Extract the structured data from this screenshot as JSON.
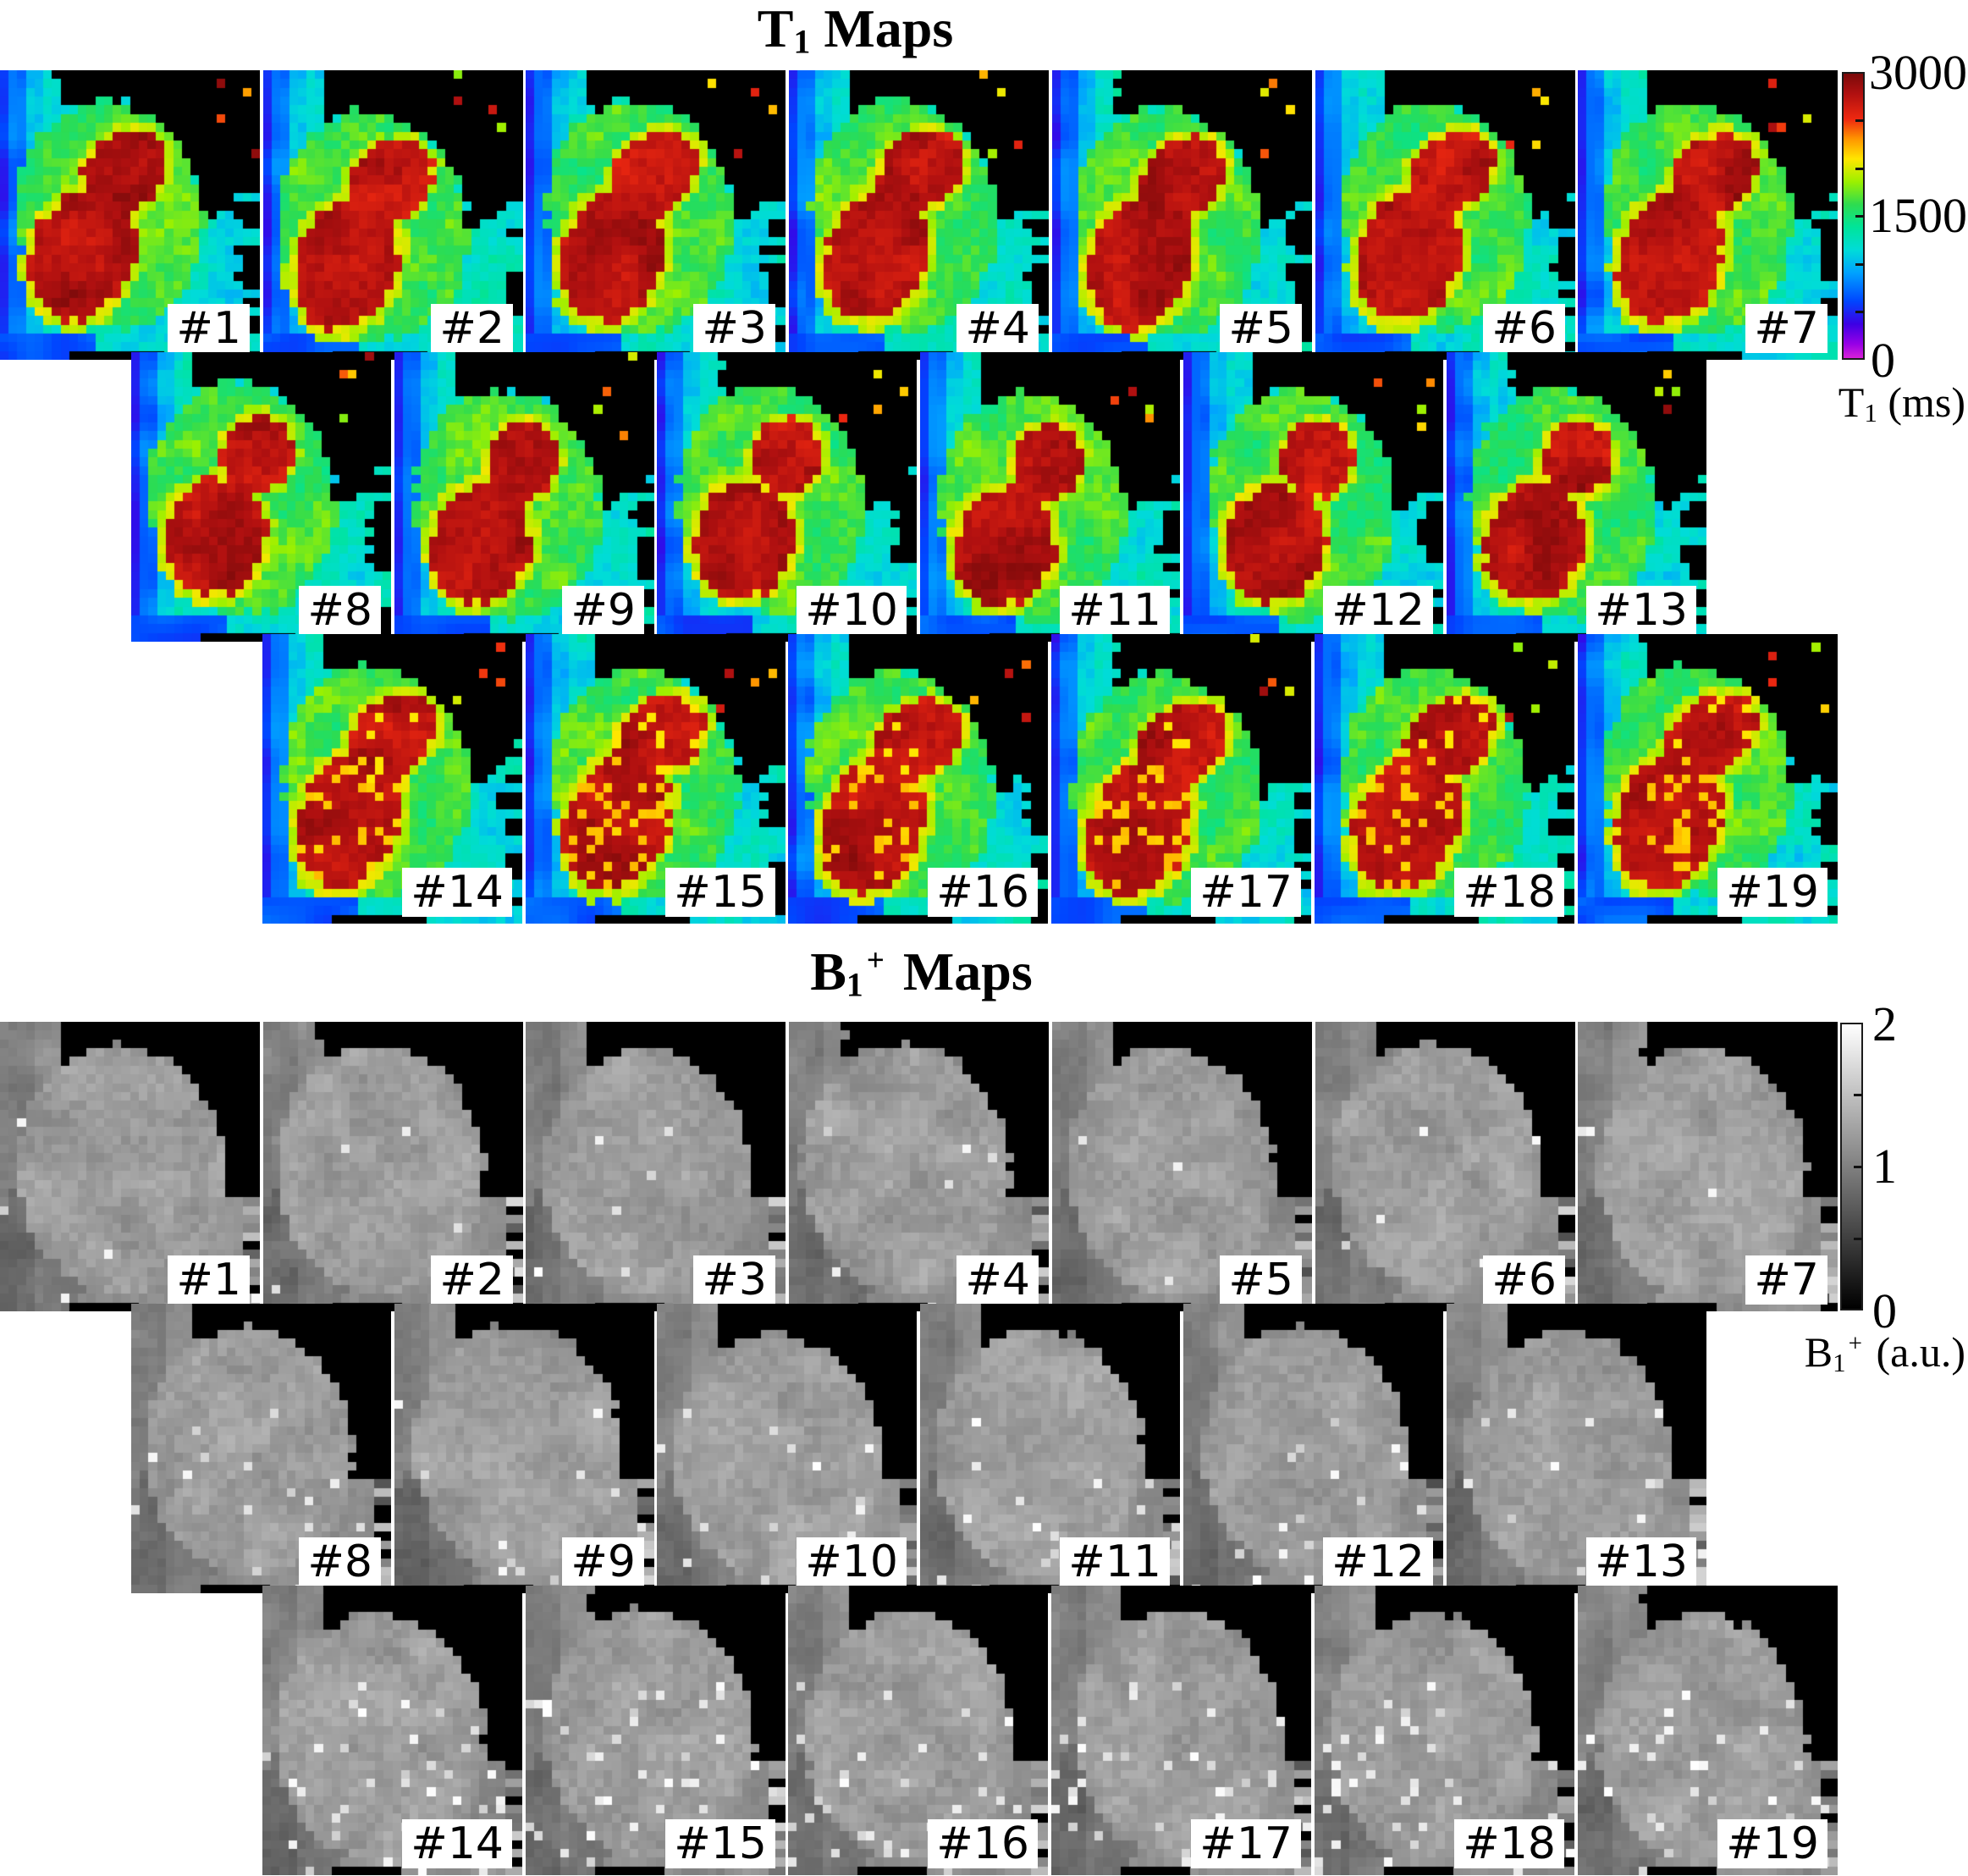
{
  "colors": {
    "page_background": "#ffffff",
    "mask_black": "#000000",
    "tile_label_text": "#000000",
    "tile_label_background": "#ffffff"
  },
  "t1_section": {
    "title": {
      "base": "T",
      "sub": "1",
      "rest": " Maps"
    },
    "colormap": "jet",
    "rows": [
      {
        "labels": [
          "#1",
          "#2",
          "#3",
          "#4",
          "#5",
          "#6",
          "#7"
        ]
      },
      {
        "labels": [
          "#8",
          "#9",
          "#10",
          "#11",
          "#12",
          "#13"
        ]
      },
      {
        "labels": [
          "#14",
          "#15",
          "#16",
          "#17",
          "#18",
          "#19"
        ]
      }
    ],
    "colorbar": {
      "tick_labels": [
        "3000",
        "1500",
        "0"
      ],
      "unit": {
        "base": "T",
        "sub": "1",
        "rest": " (ms)"
      },
      "value_range": [
        0,
        3000
      ],
      "gradient": [
        {
          "v": 0.0,
          "c": "#d820d8"
        },
        {
          "v": 0.05,
          "c": "#9600e6"
        },
        {
          "v": 0.12,
          "c": "#3c00e4"
        },
        {
          "v": 0.2,
          "c": "#0046ff"
        },
        {
          "v": 0.3,
          "c": "#00a2ff"
        },
        {
          "v": 0.38,
          "c": "#00dcd8"
        },
        {
          "v": 0.46,
          "c": "#00e49a"
        },
        {
          "v": 0.54,
          "c": "#2edc50"
        },
        {
          "v": 0.62,
          "c": "#9cf000"
        },
        {
          "v": 0.7,
          "c": "#ffe600"
        },
        {
          "v": 0.77,
          "c": "#ff9600"
        },
        {
          "v": 0.84,
          "c": "#ee2810"
        },
        {
          "v": 0.93,
          "c": "#b01010"
        },
        {
          "v": 1.0,
          "c": "#7a0a0a"
        }
      ]
    }
  },
  "b1_section": {
    "title": {
      "base": "B",
      "sub": "1",
      "sup": "+",
      "rest": " Maps"
    },
    "colormap": "grayscale",
    "rows": [
      {
        "labels": [
          "#1",
          "#2",
          "#3",
          "#4",
          "#5",
          "#6",
          "#7"
        ]
      },
      {
        "labels": [
          "#8",
          "#9",
          "#10",
          "#11",
          "#12",
          "#13"
        ]
      },
      {
        "labels": [
          "#14",
          "#15",
          "#16",
          "#17",
          "#18",
          "#19"
        ]
      }
    ],
    "colorbar": {
      "tick_labels": [
        "2",
        "1",
        "0"
      ],
      "unit": {
        "base": "B",
        "sub": "1",
        "sup": "+",
        "rest": " (a.u.)"
      },
      "value_range": [
        0,
        2
      ],
      "gradient": [
        {
          "v": 0.0,
          "c": "#000000"
        },
        {
          "v": 0.5,
          "c": "#808080"
        },
        {
          "v": 1.0,
          "c": "#ffffff"
        }
      ]
    }
  }
}
